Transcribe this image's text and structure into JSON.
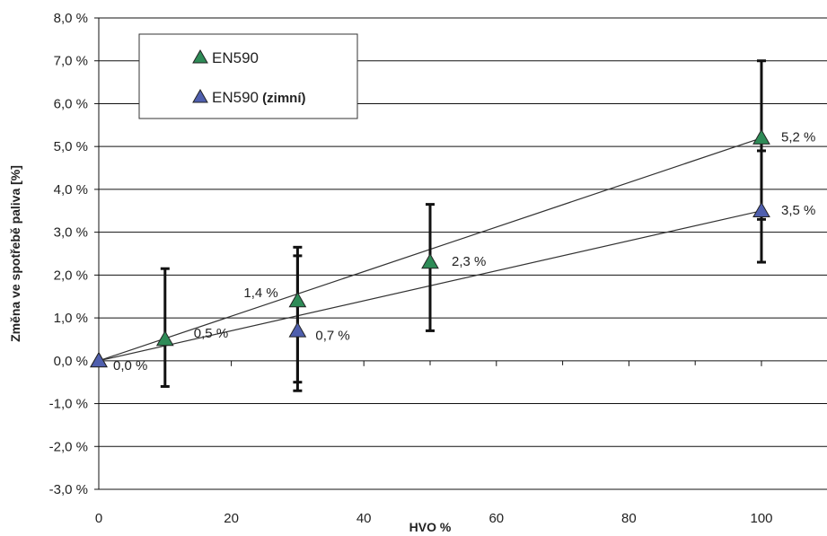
{
  "chart_data": {
    "type": "scatter",
    "title": "",
    "xlabel": "HVO %",
    "ylabel": "Změna ve spotřebě paliva [%]",
    "xlim": [
      0,
      100
    ],
    "ylim": [
      -3,
      8
    ],
    "x_ticks": [
      "0",
      "20",
      "40",
      "60",
      "80",
      "100"
    ],
    "y_ticks": [
      "8,0 %",
      "7,0 %",
      "6,0 %",
      "5,0 %",
      "4,0 %",
      "3,0 %",
      "2,0 %",
      "1,0 %",
      "0,0 %",
      "-1,0 %",
      "-2,0 %",
      "-3,0 %"
    ],
    "grid": "horizontal",
    "legend_position": "top-left",
    "series": [
      {
        "name": "EN590",
        "color": "#2e8b57",
        "points": [
          {
            "x": 0,
            "y": 0.0,
            "err_low": 0.0,
            "err_high": 0.0
          },
          {
            "x": 10,
            "y": 0.5,
            "err_low": -0.6,
            "err_high": 2.15
          },
          {
            "x": 30,
            "y": 1.4,
            "err_low": -0.5,
            "err_high": 2.65
          },
          {
            "x": 50,
            "y": 2.3,
            "err_low": 0.7,
            "err_high": 3.65
          },
          {
            "x": 100,
            "y": 5.2,
            "err_low": 3.3,
            "err_high": 7.0
          }
        ],
        "trendline": [
          [
            0,
            0.0
          ],
          [
            100,
            5.2
          ]
        ]
      },
      {
        "name": "EN590 (zimní)",
        "legend_main": "EN590",
        "legend_suffix": " (zimní)",
        "color": "#4f5fae",
        "points": [
          {
            "x": 0,
            "y": 0.0,
            "err_low": 0.0,
            "err_high": 0.0
          },
          {
            "x": 30,
            "y": 0.7,
            "err_low": -0.7,
            "err_high": 2.45
          },
          {
            "x": 100,
            "y": 3.5,
            "err_low": 2.3,
            "err_high": 4.9
          }
        ],
        "trendline": [
          [
            0,
            0.0
          ],
          [
            100,
            3.5
          ]
        ]
      }
    ],
    "data_labels": [
      {
        "series": 1,
        "x": 0,
        "y": 0.0,
        "text": "0,0 %"
      },
      {
        "series": 0,
        "x": 10,
        "y": 0.5,
        "text": "0,5 %"
      },
      {
        "series": 0,
        "x": 30,
        "y": 1.4,
        "text": "1,4 %"
      },
      {
        "series": 1,
        "x": 30,
        "y": 0.7,
        "text": "0,7 %"
      },
      {
        "series": 0,
        "x": 50,
        "y": 2.3,
        "text": "2,3 %"
      },
      {
        "series": 0,
        "x": 100,
        "y": 5.2,
        "text": "5,2 %"
      },
      {
        "series": 1,
        "x": 100,
        "y": 3.5,
        "text": "3,5 %"
      }
    ]
  }
}
